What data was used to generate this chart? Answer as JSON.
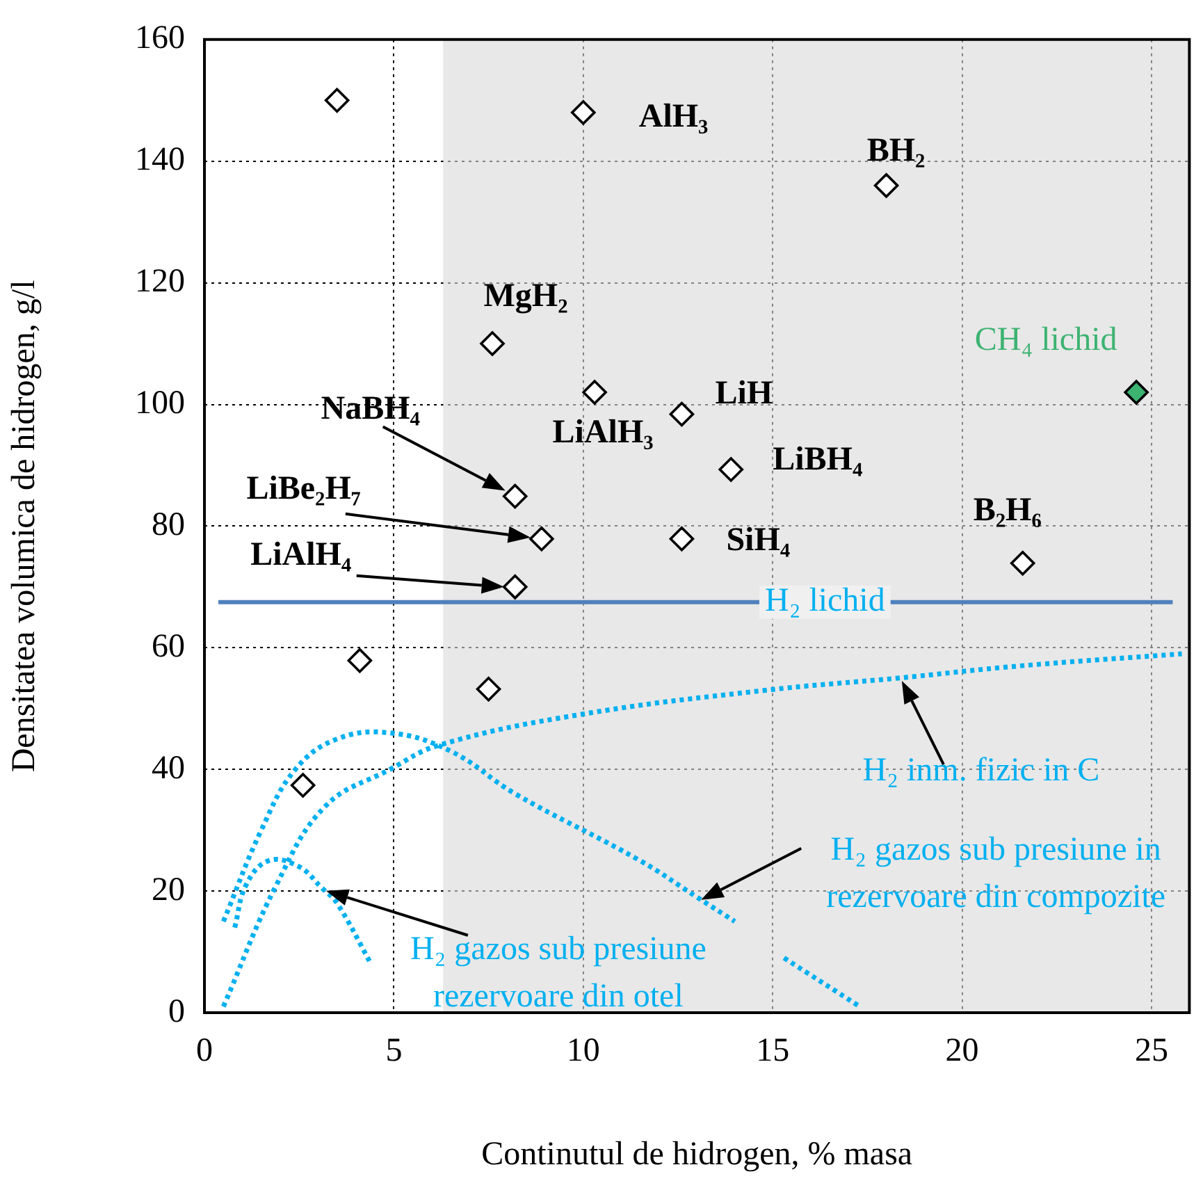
{
  "chart_data": {
    "type": "scatter",
    "xlabel": "Continutul de hidrogen, % masa",
    "ylabel": "Densitatea volumica de hidrogen, g/l",
    "xlim": [
      0,
      26
    ],
    "ylim": [
      0,
      160
    ],
    "xticks": [
      0,
      5,
      10,
      15,
      20,
      25
    ],
    "yticks": [
      0,
      20,
      40,
      60,
      80,
      100,
      120,
      140,
      160
    ],
    "grid": true,
    "series": [
      {
        "type": "scatter",
        "marker": "diamond",
        "color": "#000000",
        "x": [
          3.5,
          10,
          18,
          7.6,
          10.3,
          12.6,
          13.9,
          8.2,
          8.9,
          12.6,
          21.6,
          8.2,
          4.1,
          7.5,
          2.6
        ],
        "values": [
          150,
          148,
          136,
          110,
          102,
          98.4,
          89.3,
          84.9,
          77.9,
          77.9,
          73.9,
          70,
          57.9,
          53.2,
          37.4
        ]
      },
      {
        "type": "scatter",
        "marker": "diamond",
        "color": "#3cb371",
        "x": [
          24.6
        ],
        "values": [
          102
        ]
      },
      {
        "type": "line",
        "name": "H₂ inm. fizic in C",
        "marker": "none",
        "line_style": "dotted",
        "color": "#00b0f0",
        "x": [
          0.5,
          1.9,
          3.2,
          4.9,
          6.2,
          9.9,
          14.8,
          18.3,
          21.5,
          25.8
        ],
        "values": [
          1,
          21,
          34,
          40,
          44,
          49,
          53,
          55,
          57,
          59
        ]
      },
      {
        "type": "line",
        "name": "H₂ gazos sub presiune in rezervoare din compozite",
        "marker": "none",
        "line_style": "dotted",
        "color": "#00b0f0",
        "x": [
          0.5,
          1.5,
          2.4,
          3.5,
          4.9,
          6.5,
          8.2,
          11.5,
          13,
          14,
          14.6,
          15.3,
          17.3
        ],
        "values": [
          15,
          30,
          40,
          45,
          46,
          43,
          36,
          25,
          19,
          15,
          null,
          9,
          1
        ]
      },
      {
        "type": "line",
        "name": "H₂ gazos sub presiune rezervoare din otel",
        "marker": "none",
        "line_style": "dotted",
        "color": "#00b0f0",
        "x": [
          0.8,
          1.1,
          1.7,
          2.5,
          3.1,
          3.5,
          4.4
        ],
        "values": [
          14,
          21,
          25,
          24,
          20.5,
          18,
          8
        ]
      }
    ],
    "ref_lines": [
      {
        "axis": "y",
        "value": 67.5,
        "label": "H₂ lichid",
        "color": "#4f81bd"
      }
    ],
    "bands": [
      {
        "axis": "x",
        "from": 6.3,
        "to": 26,
        "color": "#d9d9d9"
      }
    ],
    "annotations": [
      {
        "text": "AlH₃",
        "x": 10,
        "y": 148
      },
      {
        "text": "BH₂",
        "x": 18,
        "y": 136
      },
      {
        "text": "MgH₂",
        "x": 7.6,
        "y": 110
      },
      {
        "text": "CH₄ lichid",
        "x": 24.6,
        "y": 102
      },
      {
        "text": "LiH",
        "x": 12.6,
        "y": 98.4
      },
      {
        "text": "LiAlH₃",
        "x": 10.3,
        "y": 102
      },
      {
        "text": "LiBH₄",
        "x": 13.9,
        "y": 89.3
      },
      "NaBH₄",
      "LiBe₂H₇",
      {
        "text": "SiH₄",
        "x": 12.6,
        "y": 77.9
      },
      {
        "text": "B₂H₆",
        "x": 21.6,
        "y": 73.9
      },
      "LiAlH₄"
    ]
  }
}
